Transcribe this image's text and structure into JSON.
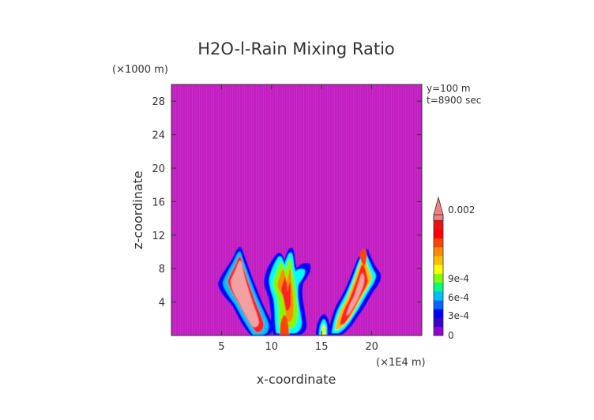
{
  "chart_data": {
    "type": "heatmap",
    "title": "H2O-l-Rain Mixing Ratio",
    "xlabel": "x-coordinate",
    "ylabel": "z-coordinate",
    "x_unit": "(×1E4 m)",
    "y_unit": "(×1000 m)",
    "annotations": [
      "y=100 m",
      "t=8900 sec"
    ],
    "xlim": [
      0,
      25
    ],
    "ylim": [
      0,
      30
    ],
    "x_ticks": [
      5,
      10,
      15,
      20
    ],
    "y_ticks": [
      4,
      8,
      12,
      16,
      20,
      24,
      28
    ],
    "background_color": "#c21ec2",
    "colorbar": {
      "tick_labels": [
        "0",
        "3e-4",
        "6e-4",
        "9e-4",
        "0.002"
      ],
      "levels": [
        {
          "color": "#9400d3"
        },
        {
          "color": "#3a00c8"
        },
        {
          "color": "#0000ff"
        },
        {
          "color": "#0066ff"
        },
        {
          "color": "#00bfff"
        },
        {
          "color": "#00ff7f"
        },
        {
          "color": "#7fff00"
        },
        {
          "color": "#ffff00"
        },
        {
          "color": "#ffbf00"
        },
        {
          "color": "#ff8c00"
        },
        {
          "color": "#ff4500"
        },
        {
          "color": "#ff0000"
        },
        {
          "color": "#ee1111"
        },
        {
          "color": "#f08080"
        }
      ]
    },
    "cells": [
      {
        "x": 6.5,
        "z": 7.0,
        "v": 0.002
      },
      {
        "x": 7.0,
        "z": 6.0,
        "v": 0.002
      },
      {
        "x": 7.5,
        "z": 4.0,
        "v": 0.002
      },
      {
        "x": 6.8,
        "z": 9.0,
        "v": 0.0012
      },
      {
        "x": 8.5,
        "z": 2.0,
        "v": 0.0009
      },
      {
        "x": 6.0,
        "z": 6.5,
        "v": 0.0006
      },
      {
        "x": 11.0,
        "z": 6.0,
        "v": 0.0012
      },
      {
        "x": 12.0,
        "z": 7.5,
        "v": 0.0009
      },
      {
        "x": 11.5,
        "z": 3.0,
        "v": 0.0006
      },
      {
        "x": 10.2,
        "z": 8.0,
        "v": 0.0004
      },
      {
        "x": 12.8,
        "z": 4.5,
        "v": 0.0003
      },
      {
        "x": 15.0,
        "z": 2.0,
        "v": 0.0006
      },
      {
        "x": 17.5,
        "z": 5.0,
        "v": 0.002
      },
      {
        "x": 18.5,
        "z": 7.0,
        "v": 0.002
      },
      {
        "x": 17.0,
        "z": 2.5,
        "v": 0.0012
      },
      {
        "x": 19.5,
        "z": 8.5,
        "v": 0.0009
      },
      {
        "x": 16.2,
        "z": 4.0,
        "v": 0.0006
      }
    ]
  }
}
